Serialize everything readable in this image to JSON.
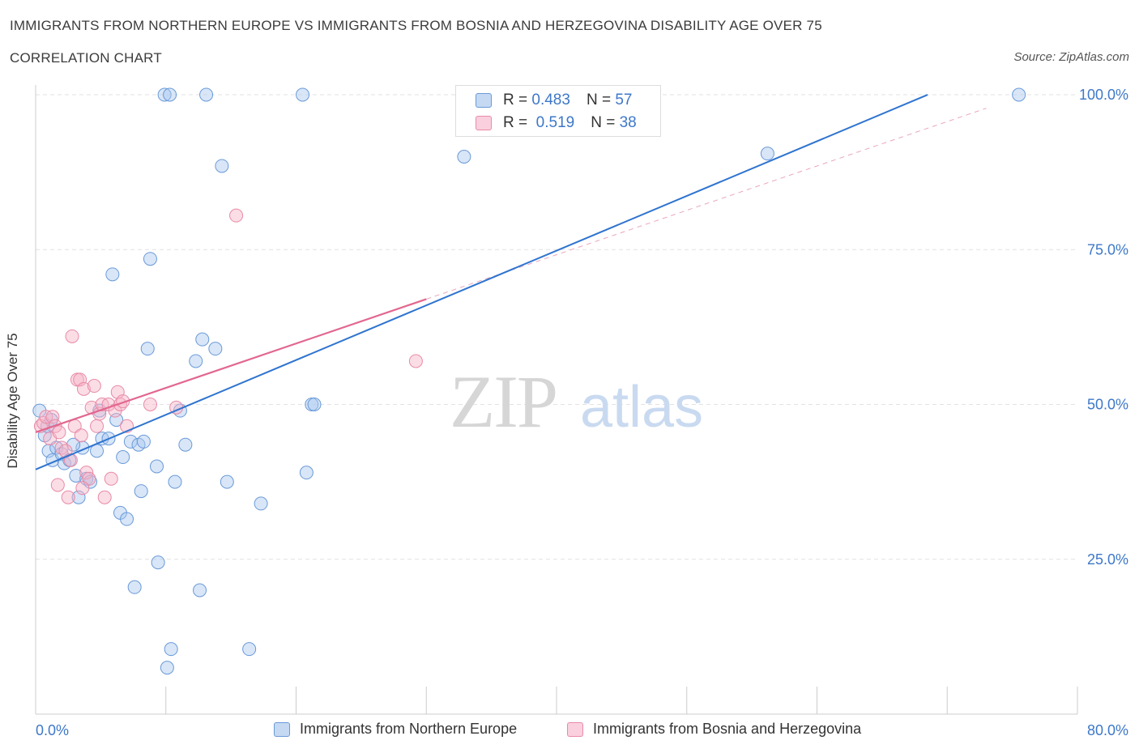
{
  "header": {
    "title": "IMMIGRANTS FROM NORTHERN EUROPE VS IMMIGRANTS FROM BOSNIA AND HERZEGOVINA DISABILITY AGE OVER 75",
    "subtitle": "CORRELATION CHART",
    "source": "Source: ZipAtlas.com"
  },
  "legend_top": {
    "rows": [
      {
        "r_label": "R =",
        "r_value": "0.483",
        "n_label": "N =",
        "n_value": "57"
      },
      {
        "r_label": "R =",
        "r_value": "0.519",
        "n_label": "N =",
        "n_value": "38"
      }
    ]
  },
  "colors": {
    "blue_fill": "#a9c8f0",
    "blue_stroke": "#6a9ad8",
    "blue_line": "#2f74cf",
    "pink_fill": "#f6b3c8",
    "pink_stroke": "#e88aa6",
    "pink_line": "#e2678f",
    "tick_label": "#3d78c8",
    "grid": "#e2e2e2"
  },
  "chart_data": {
    "type": "scatter",
    "title": "IMMIGRANTS FROM NORTHERN EUROPE VS IMMIGRANTS FROM BOSNIA AND HERZEGOVINA DISABILITY AGE OVER 75",
    "xlabel": "",
    "ylabel": "Disability Age Over 75",
    "xlim": [
      0,
      80
    ],
    "ylim": [
      0,
      100
    ],
    "x_tick_labels": [
      "0.0%",
      "80.0%"
    ],
    "y_tick_labels": [
      "100.0%",
      "75.0%",
      "50.0%",
      "25.0%"
    ],
    "y_ticks": [
      100,
      75,
      50,
      25
    ],
    "grid": true,
    "watermark": {
      "zip": "ZIP",
      "atlas": "atlas"
    },
    "series": [
      {
        "name": "Immigrants from Northern Europe",
        "color": "#a9c8f0",
        "trend": {
          "x": [
            0,
            68.5
          ],
          "y": [
            39.5,
            100
          ]
        },
        "points": [
          [
            0.3,
            49
          ],
          [
            0.7,
            45
          ],
          [
            0.9,
            46.5
          ],
          [
            1.0,
            42.5
          ],
          [
            1.3,
            41
          ],
          [
            1.6,
            43
          ],
          [
            2.0,
            42
          ],
          [
            2.2,
            40.5
          ],
          [
            2.6,
            41
          ],
          [
            3.1,
            38.5
          ],
          [
            3.3,
            35
          ],
          [
            3.6,
            43
          ],
          [
            3.9,
            38
          ],
          [
            4.2,
            37.5
          ],
          [
            4.7,
            42.5
          ],
          [
            4.9,
            49
          ],
          [
            5.1,
            44.5
          ],
          [
            5.6,
            44.5
          ],
          [
            5.9,
            71
          ],
          [
            6.2,
            47.5
          ],
          [
            6.5,
            32.5
          ],
          [
            6.7,
            41.5
          ],
          [
            7.0,
            31.5
          ],
          [
            7.3,
            44
          ],
          [
            7.6,
            20.5
          ],
          [
            7.9,
            43.5
          ],
          [
            8.1,
            36
          ],
          [
            8.3,
            44
          ],
          [
            8.8,
            73.5
          ],
          [
            8.6,
            59
          ],
          [
            9.3,
            40
          ],
          [
            9.4,
            24.5
          ],
          [
            9.9,
            100
          ],
          [
            10.1,
            7.5
          ],
          [
            10.3,
            100
          ],
          [
            10.4,
            10.5
          ],
          [
            10.7,
            37.5
          ],
          [
            11.1,
            49
          ],
          [
            11.5,
            43.5
          ],
          [
            12.3,
            57
          ],
          [
            12.6,
            20
          ],
          [
            12.8,
            60.5
          ],
          [
            13.1,
            100
          ],
          [
            13.8,
            59
          ],
          [
            14.3,
            88.5
          ],
          [
            14.7,
            37.5
          ],
          [
            16.4,
            10.5
          ],
          [
            17.3,
            34
          ],
          [
            20.5,
            100
          ],
          [
            20.8,
            39
          ],
          [
            21.2,
            50
          ],
          [
            21.4,
            50
          ],
          [
            32.9,
            90
          ],
          [
            56.2,
            90.5
          ],
          [
            75.5,
            100
          ],
          [
            1.2,
            47.5
          ],
          [
            2.9,
            43.5
          ]
        ]
      },
      {
        "name": "Immigrants from Bosnia and Herzegovina",
        "color": "#f6b3c8",
        "trend": {
          "x": [
            0,
            30
          ],
          "y": [
            45.5,
            67
          ]
        },
        "points": [
          [
            0.4,
            46.5
          ],
          [
            0.6,
            47
          ],
          [
            0.8,
            48
          ],
          [
            1.1,
            44.5
          ],
          [
            1.3,
            48
          ],
          [
            1.5,
            46.5
          ],
          [
            1.8,
            45.5
          ],
          [
            2.0,
            43
          ],
          [
            2.3,
            42.5
          ],
          [
            2.5,
            35
          ],
          [
            2.7,
            41
          ],
          [
            2.8,
            61
          ],
          [
            3.0,
            46.5
          ],
          [
            3.2,
            54
          ],
          [
            3.4,
            54
          ],
          [
            3.5,
            45
          ],
          [
            3.7,
            52.5
          ],
          [
            3.9,
            39
          ],
          [
            4.1,
            38
          ],
          [
            4.3,
            49.5
          ],
          [
            4.5,
            53
          ],
          [
            4.7,
            46.5
          ],
          [
            4.9,
            48.5
          ],
          [
            5.1,
            50
          ],
          [
            5.3,
            35
          ],
          [
            5.6,
            50
          ],
          [
            5.8,
            38
          ],
          [
            6.1,
            49
          ],
          [
            6.3,
            52
          ],
          [
            6.5,
            50
          ],
          [
            6.7,
            50.5
          ],
          [
            7.0,
            46.5
          ],
          [
            8.8,
            50
          ],
          [
            10.8,
            49.5
          ],
          [
            15.4,
            80.5
          ],
          [
            29.2,
            57
          ],
          [
            1.7,
            37
          ],
          [
            3.6,
            36.5
          ]
        ]
      }
    ]
  },
  "bottom_legend": {
    "blue_label": "Immigrants from Northern Europe",
    "pink_label": "Immigrants from Bosnia and Herzegovina"
  }
}
